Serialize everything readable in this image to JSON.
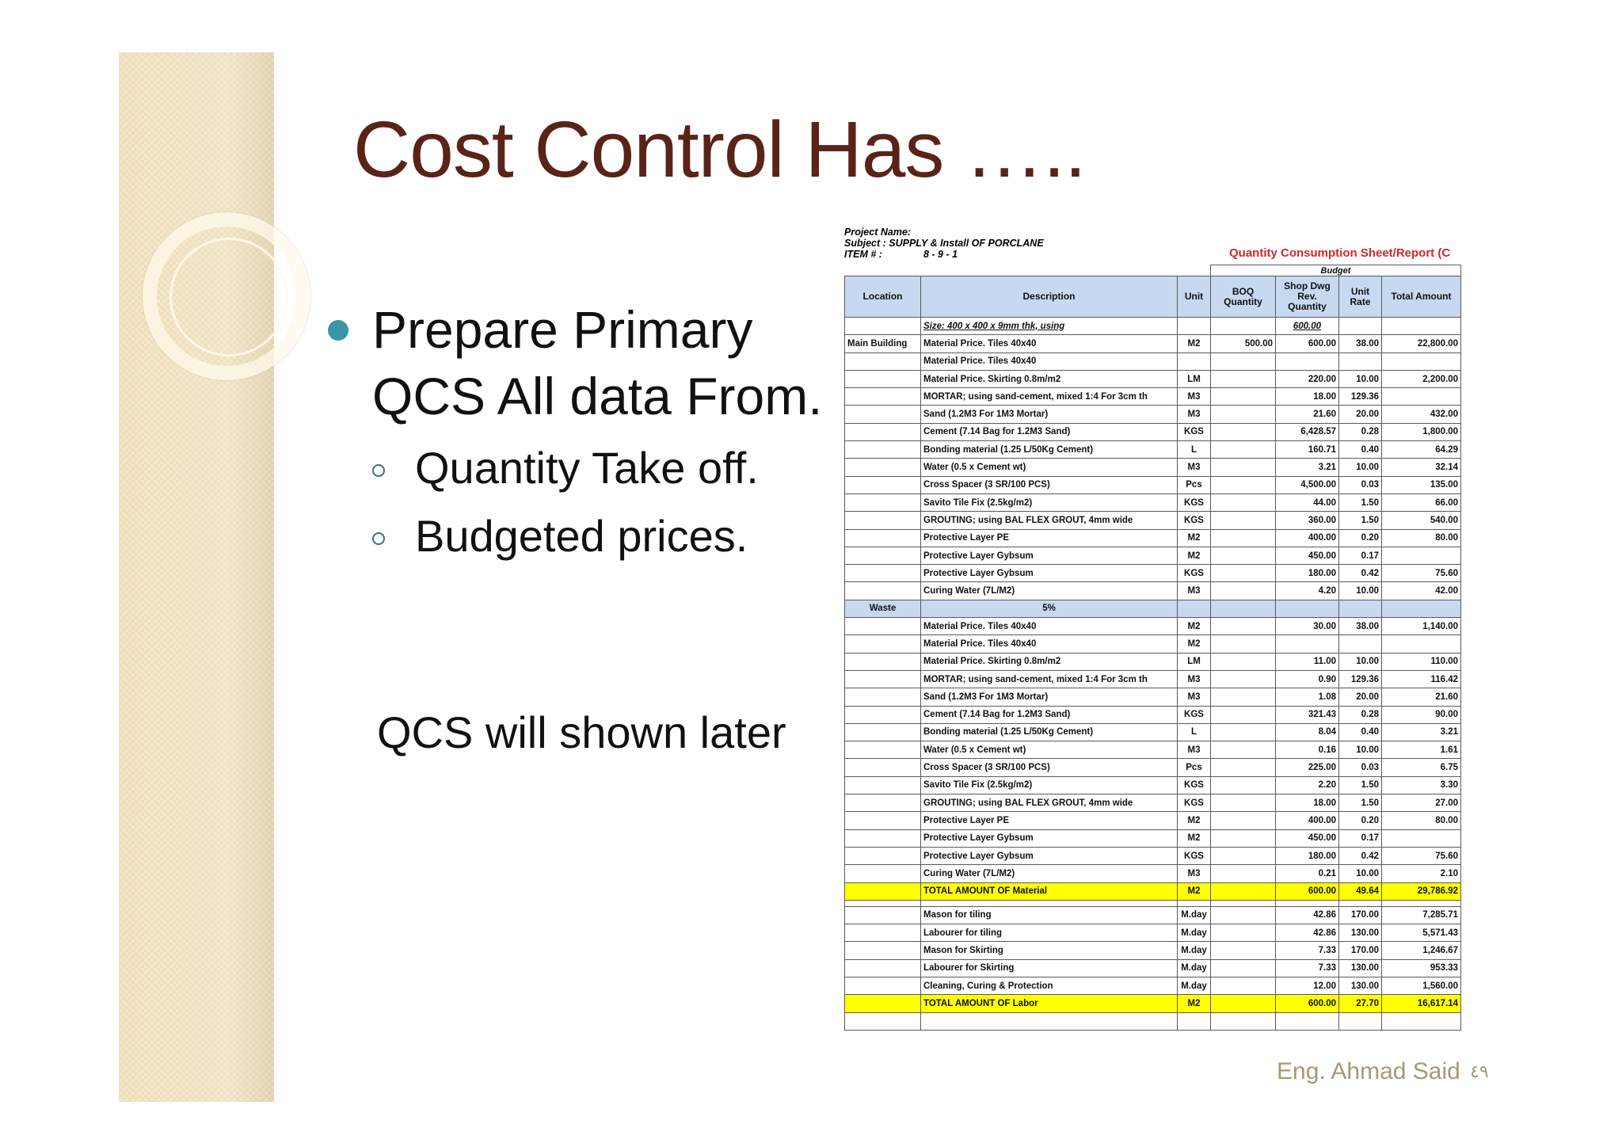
{
  "slide": {
    "title": "Cost Control Has …..",
    "bullet": "Prepare Primary QCS All data From.",
    "sub_items": [
      "Quantity Take off.",
      "Budgeted prices."
    ],
    "note": "QCS will shown later",
    "footer": "Eng. Ahmad Said",
    "page_number": "٤٩"
  },
  "sheet": {
    "project_name": "Project Name:",
    "subject": "Subject : SUPPLY & Install OF PORCLANE",
    "item_label": "ITEM # :",
    "item_value": "8 - 9 - 1",
    "report_title": "Quantity Consumption Sheet/Report (C",
    "budget_label": "Budget",
    "columns": [
      "Location",
      "Description",
      "Unit",
      "BOQ Quantity",
      "Shop Dwg Rev. Quantity",
      "Unit Rate",
      "Total Amount"
    ],
    "rows": [
      {
        "type": "normal",
        "cells": [
          "",
          "Size: 400 x 400 x  9mm thk, using",
          "",
          "",
          "600.00",
          "",
          ""
        ],
        "underline": true
      },
      {
        "type": "normal",
        "cells": [
          "Main Building",
          "Material Price. Tiles 40x40",
          "M2",
          "500.00",
          "600.00",
          "38.00",
          "22,800.00"
        ]
      },
      {
        "type": "normal",
        "cells": [
          "",
          "Material Price. Tiles 40x40",
          "",
          "",
          "",
          "",
          ""
        ]
      },
      {
        "type": "normal",
        "cells": [
          "",
          "Material Price. Skirting 0.8m/m2",
          "LM",
          "",
          "220.00",
          "10.00",
          "2,200.00"
        ]
      },
      {
        "type": "normal",
        "cells": [
          "",
          "MORTAR; using sand-cement, mixed 1:4 For 3cm th",
          "M3",
          "",
          "18.00",
          "129.36",
          ""
        ]
      },
      {
        "type": "normal",
        "cells": [
          "",
          "Sand  (1.2M3 For 1M3 Mortar)",
          "M3",
          "",
          "21.60",
          "20.00",
          "432.00"
        ]
      },
      {
        "type": "normal",
        "cells": [
          "",
          "Cement (7.14 Bag for 1.2M3 Sand)",
          "KGS",
          "",
          "6,428.57",
          "0.28",
          "1,800.00"
        ]
      },
      {
        "type": "normal",
        "cells": [
          "",
          "Bonding material  (1.25 L/50Kg Cement)",
          "L",
          "",
          "160.71",
          "0.40",
          "64.29"
        ]
      },
      {
        "type": "normal",
        "cells": [
          "",
          "Water (0.5 x Cement wt)",
          "M3",
          "",
          "3.21",
          "10.00",
          "32.14"
        ]
      },
      {
        "type": "normal",
        "cells": [
          "",
          "Cross Spacer (3 SR/100 PCS)",
          "Pcs",
          "",
          "4,500.00",
          "0.03",
          "135.00"
        ]
      },
      {
        "type": "normal",
        "cells": [
          "",
          "Savito Tile Fix (2.5kg/m2)",
          "KGS",
          "",
          "44.00",
          "1.50",
          "66.00"
        ]
      },
      {
        "type": "normal",
        "cells": [
          "",
          "GROUTING; using BAL FLEX GROUT, 4mm wide",
          "KGS",
          "",
          "360.00",
          "1.50",
          "540.00"
        ]
      },
      {
        "type": "normal",
        "cells": [
          "",
          "Protective Layer PE",
          "M2",
          "",
          "400.00",
          "0.20",
          "80.00"
        ]
      },
      {
        "type": "normal",
        "cells": [
          "",
          "Protective Layer Gybsum",
          "M2",
          "",
          "450.00",
          "0.17",
          ""
        ]
      },
      {
        "type": "normal",
        "cells": [
          "",
          "Protective Layer Gybsum",
          "KGS",
          "",
          "180.00",
          "0.42",
          "75.60"
        ]
      },
      {
        "type": "normal",
        "cells": [
          "",
          "Curing Water (7L/M2)",
          "M3",
          "",
          "4.20",
          "10.00",
          "42.00"
        ]
      },
      {
        "type": "waste",
        "cells": [
          "Waste",
          "5%",
          "",
          "",
          "",
          "",
          ""
        ]
      },
      {
        "type": "normal",
        "cells": [
          "",
          "Material Price. Tiles 40x40",
          "M2",
          "",
          "30.00",
          "38.00",
          "1,140.00"
        ]
      },
      {
        "type": "normal",
        "cells": [
          "",
          "Material Price. Tiles 40x40",
          "M2",
          "",
          "",
          "",
          ""
        ]
      },
      {
        "type": "normal",
        "cells": [
          "",
          "Material Price. Skirting 0.8m/m2",
          "LM",
          "",
          "11.00",
          "10.00",
          "110.00"
        ]
      },
      {
        "type": "normal",
        "cells": [
          "",
          "MORTAR; using sand-cement, mixed 1:4 For 3cm th",
          "M3",
          "",
          "0.90",
          "129.36",
          "116.42"
        ]
      },
      {
        "type": "normal",
        "cells": [
          "",
          "Sand  (1.2M3 For 1M3 Mortar)",
          "M3",
          "",
          "1.08",
          "20.00",
          "21.60"
        ]
      },
      {
        "type": "normal",
        "cells": [
          "",
          "Cement (7.14 Bag for 1.2M3 Sand)",
          "KGS",
          "",
          "321.43",
          "0.28",
          "90.00"
        ]
      },
      {
        "type": "normal",
        "cells": [
          "",
          "Bonding material  (1.25 L/50Kg Cement)",
          "L",
          "",
          "8.04",
          "0.40",
          "3.21"
        ]
      },
      {
        "type": "normal",
        "cells": [
          "",
          "Water (0.5 x Cement wt)",
          "M3",
          "",
          "0.16",
          "10.00",
          "1.61"
        ]
      },
      {
        "type": "normal",
        "cells": [
          "",
          "Cross Spacer (3 SR/100 PCS)",
          "Pcs",
          "",
          "225.00",
          "0.03",
          "6.75"
        ]
      },
      {
        "type": "normal",
        "cells": [
          "",
          "Savito Tile Fix (2.5kg/m2)",
          "KGS",
          "",
          "2.20",
          "1.50",
          "3.30"
        ]
      },
      {
        "type": "normal",
        "cells": [
          "",
          "GROUTING; using BAL FLEX GROUT, 4mm wide",
          "KGS",
          "",
          "18.00",
          "1.50",
          "27.00"
        ]
      },
      {
        "type": "normal",
        "cells": [
          "",
          "Protective Layer PE",
          "M2",
          "",
          "400.00",
          "0.20",
          "80.00"
        ]
      },
      {
        "type": "normal",
        "cells": [
          "",
          "Protective Layer Gybsum",
          "M2",
          "",
          "450.00",
          "0.17",
          ""
        ]
      },
      {
        "type": "normal",
        "cells": [
          "",
          "Protective Layer Gybsum",
          "KGS",
          "",
          "180.00",
          "0.42",
          "75.60"
        ]
      },
      {
        "type": "normal",
        "cells": [
          "",
          "Curing Water (7L/M2)",
          "M3",
          "",
          "0.21",
          "10.00",
          "2.10"
        ]
      },
      {
        "type": "total",
        "cells": [
          "",
          "TOTAL AMOUNT OF Material",
          "M2",
          "",
          "600.00",
          "49.64",
          "29,786.92"
        ]
      },
      {
        "type": "gap",
        "cells": [
          "",
          "",
          "",
          "",
          "",
          "",
          ""
        ]
      },
      {
        "type": "normal",
        "cells": [
          "",
          "Mason for tiling",
          "M.day",
          "",
          "42.86",
          "170.00",
          "7,285.71"
        ]
      },
      {
        "type": "normal",
        "cells": [
          "",
          "Labourer for tiling",
          "M.day",
          "",
          "42.86",
          "130.00",
          "5,571.43"
        ]
      },
      {
        "type": "normal",
        "cells": [
          "",
          "Mason for Skirting",
          "M.day",
          "",
          "7.33",
          "170.00",
          "1,246.67"
        ]
      },
      {
        "type": "normal",
        "cells": [
          "",
          "Labourer for Skirting",
          "M.day",
          "",
          "7.33",
          "130.00",
          "953.33"
        ]
      },
      {
        "type": "normal",
        "cells": [
          "",
          "Cleaning, Curing & Protection",
          "M.day",
          "",
          "12.00",
          "130.00",
          "1,560.00"
        ]
      },
      {
        "type": "total",
        "cells": [
          "",
          "TOTAL AMOUNT OF Labor",
          "M2",
          "",
          "600.00",
          "27.70",
          "16,617.14"
        ]
      },
      {
        "type": "normal",
        "cells": [
          "",
          "",
          "",
          "",
          "",
          "",
          ""
        ]
      }
    ]
  }
}
